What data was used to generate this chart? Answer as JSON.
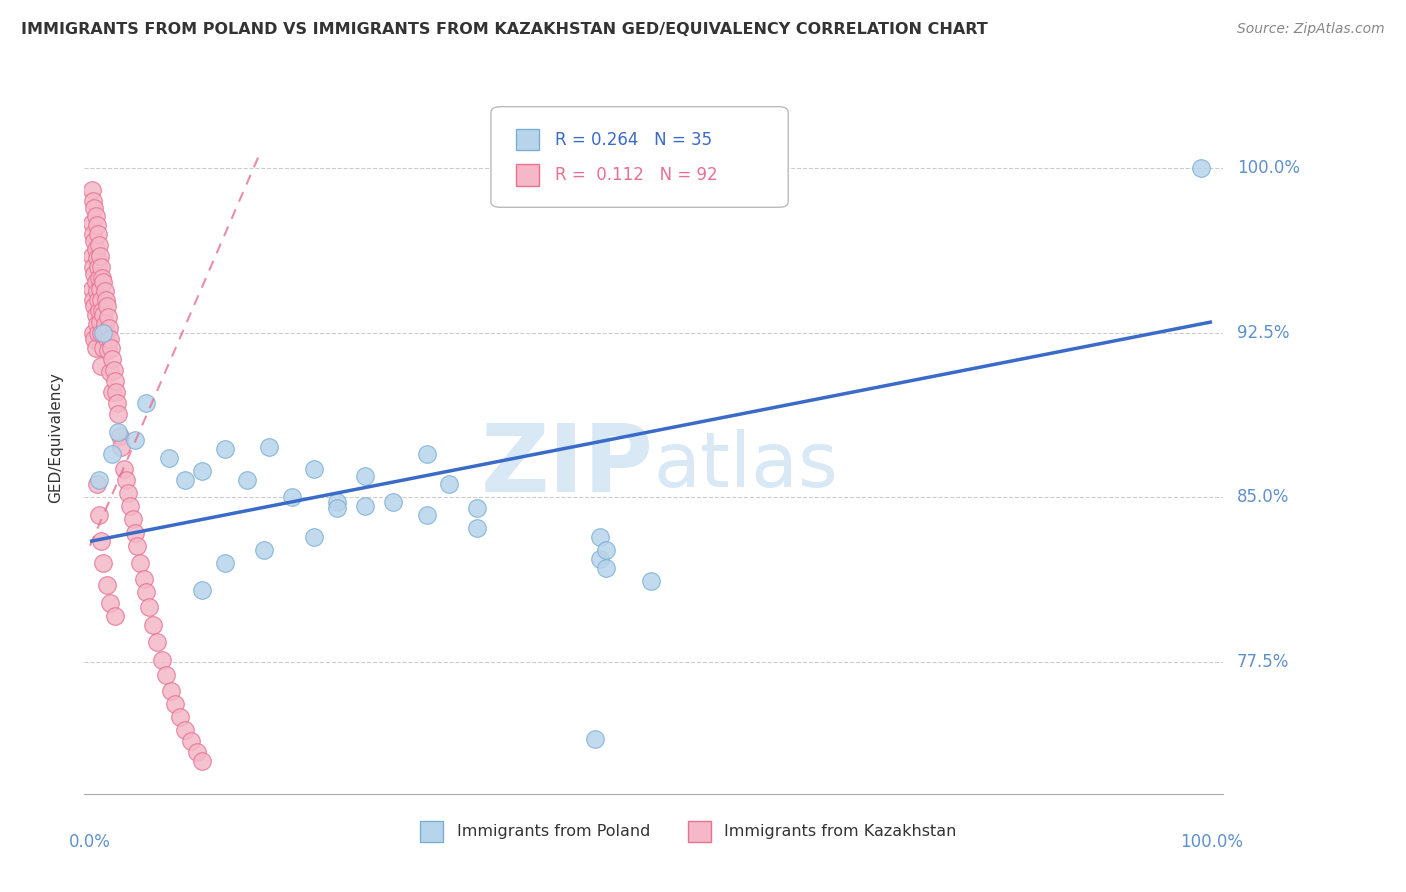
{
  "title": "IMMIGRANTS FROM POLAND VS IMMIGRANTS FROM KAZAKHSTAN GED/EQUIVALENCY CORRELATION CHART",
  "source": "Source: ZipAtlas.com",
  "ylabel": "GED/Equivalency",
  "r_poland": "0.264",
  "n_poland": "35",
  "r_kazakhstan": "0.112",
  "n_kazakhstan": "92",
  "blue_fill": "#B8D4EA",
  "blue_edge": "#7AAFD4",
  "blue_line": "#3A6BC8",
  "pink_fill": "#F4B8C8",
  "pink_edge": "#E87090",
  "pink_line": "#E87090",
  "text_color": "#333333",
  "axis_color": "#6090CC",
  "grid_color": "#CCCCCC",
  "watermark_color": "#D8E8F5",
  "background": "#FFFFFF",
  "ytick_positions": [
    0.775,
    0.85,
    0.925,
    1.0
  ],
  "ytick_labels": [
    "77.5%",
    "85.0%",
    "92.5%",
    "100.0%"
  ],
  "xlim": [
    -0.005,
    1.01
  ],
  "ylim": [
    0.715,
    1.04
  ],
  "poland_x": [
    0.008,
    0.012,
    0.02,
    0.025,
    0.04,
    0.05,
    0.07,
    0.085,
    0.1,
    0.12,
    0.14,
    0.16,
    0.18,
    0.2,
    0.22,
    0.245,
    0.27,
    0.3,
    0.32,
    0.345,
    0.345,
    0.3,
    0.245,
    0.2,
    0.155,
    0.12,
    0.1,
    0.455,
    0.455,
    0.46,
    0.46,
    0.5,
    0.99,
    0.22,
    0.45
  ],
  "poland_y": [
    0.858,
    0.925,
    0.87,
    0.88,
    0.876,
    0.893,
    0.868,
    0.858,
    0.862,
    0.872,
    0.858,
    0.873,
    0.85,
    0.863,
    0.848,
    0.86,
    0.848,
    0.842,
    0.856,
    0.845,
    0.836,
    0.87,
    0.846,
    0.832,
    0.826,
    0.82,
    0.808,
    0.832,
    0.822,
    0.826,
    0.818,
    0.812,
    1.0,
    0.845,
    0.74
  ],
  "kaz_x": [
    0.002,
    0.002,
    0.002,
    0.002,
    0.003,
    0.003,
    0.003,
    0.003,
    0.003,
    0.004,
    0.004,
    0.004,
    0.004,
    0.004,
    0.005,
    0.005,
    0.005,
    0.005,
    0.005,
    0.006,
    0.006,
    0.006,
    0.006,
    0.007,
    0.007,
    0.007,
    0.007,
    0.008,
    0.008,
    0.008,
    0.009,
    0.009,
    0.009,
    0.01,
    0.01,
    0.01,
    0.01,
    0.011,
    0.011,
    0.012,
    0.012,
    0.012,
    0.013,
    0.013,
    0.014,
    0.014,
    0.015,
    0.015,
    0.016,
    0.016,
    0.017,
    0.018,
    0.018,
    0.019,
    0.02,
    0.02,
    0.021,
    0.022,
    0.023,
    0.024,
    0.025,
    0.027,
    0.028,
    0.03,
    0.032,
    0.034,
    0.036,
    0.038,
    0.04,
    0.042,
    0.045,
    0.048,
    0.05,
    0.053,
    0.056,
    0.06,
    0.064,
    0.068,
    0.072,
    0.076,
    0.08,
    0.085,
    0.09,
    0.095,
    0.1,
    0.006,
    0.008,
    0.01,
    0.012,
    0.015,
    0.018,
    0.022
  ],
  "kaz_y": [
    0.99,
    0.975,
    0.96,
    0.945,
    0.985,
    0.97,
    0.955,
    0.94,
    0.925,
    0.982,
    0.967,
    0.952,
    0.937,
    0.922,
    0.978,
    0.963,
    0.948,
    0.933,
    0.918,
    0.974,
    0.959,
    0.944,
    0.929,
    0.97,
    0.955,
    0.94,
    0.925,
    0.965,
    0.95,
    0.935,
    0.96,
    0.945,
    0.93,
    0.955,
    0.94,
    0.925,
    0.91,
    0.95,
    0.935,
    0.948,
    0.933,
    0.918,
    0.944,
    0.929,
    0.94,
    0.925,
    0.937,
    0.922,
    0.932,
    0.917,
    0.927,
    0.922,
    0.907,
    0.918,
    0.913,
    0.898,
    0.908,
    0.903,
    0.898,
    0.893,
    0.888,
    0.878,
    0.873,
    0.863,
    0.858,
    0.852,
    0.846,
    0.84,
    0.834,
    0.828,
    0.82,
    0.813,
    0.807,
    0.8,
    0.792,
    0.784,
    0.776,
    0.769,
    0.762,
    0.756,
    0.75,
    0.744,
    0.739,
    0.734,
    0.73,
    0.856,
    0.842,
    0.83,
    0.82,
    0.81,
    0.802,
    0.796
  ],
  "poland_line_x0": 0.0,
  "poland_line_x1": 1.0,
  "poland_line_y0": 0.83,
  "poland_line_y1": 0.93,
  "kaz_line_x0": 0.0,
  "kaz_line_x1": 0.15,
  "kaz_line_y0": 0.828,
  "kaz_line_y1": 1.005
}
